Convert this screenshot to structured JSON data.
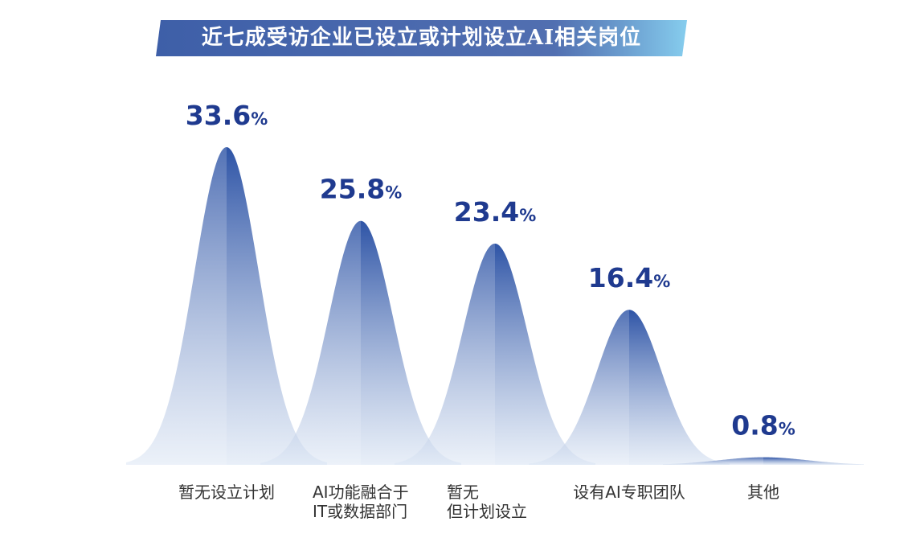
{
  "title": "近七成受访企业已设立或计划设立AI相关岗位",
  "colors": {
    "bar_dark": "#2e54a6",
    "bar_light": "#dce6f4",
    "label": "#1f3a8f",
    "category": "#333333",
    "banner_left": "#3e5fa8",
    "banner_right": "#86cdee"
  },
  "chart_data": {
    "type": "area",
    "categories": [
      [
        "暂无设立计划"
      ],
      [
        "AI功能融合于",
        "IT或数据部门"
      ],
      [
        "暂无",
        "但计划设立"
      ],
      [
        "设有AI专职团队"
      ],
      [
        "其他"
      ]
    ],
    "values": [
      33.6,
      25.8,
      23.4,
      16.4,
      0.8
    ],
    "value_labels": [
      "33.6",
      "25.8",
      "23.4",
      "16.4",
      "0.8"
    ],
    "unit": "%",
    "ylim": [
      0,
      35
    ]
  }
}
